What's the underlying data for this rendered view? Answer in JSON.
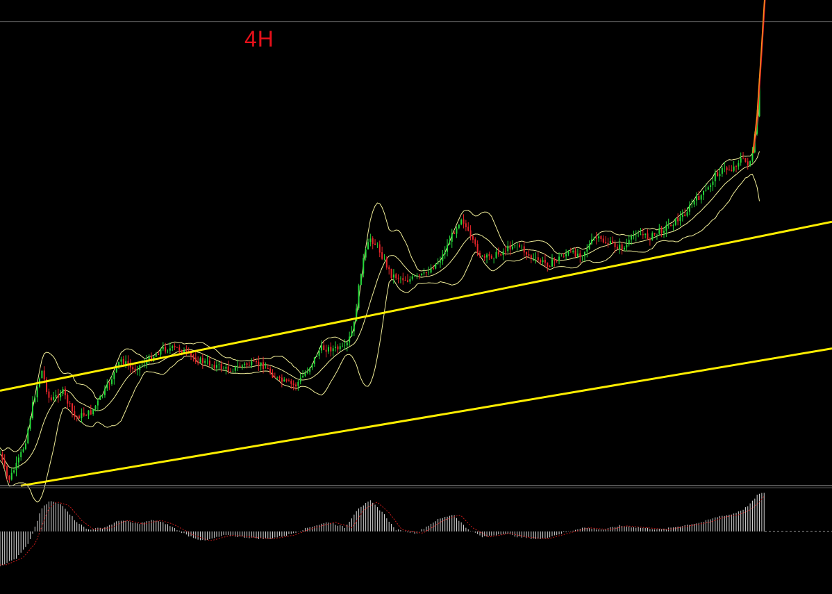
{
  "timeframe_label": "4H",
  "colors": {
    "background": "#000000",
    "channel": "#ffee00",
    "band": "#f2ef9a",
    "up_candle": "#25d83a",
    "down_candle": "#e8252a",
    "histogram": "#d9d9d9",
    "signal": "#c81a1a",
    "separator": "#8a8a8a",
    "label": "#e8101a"
  },
  "chart_data": [
    {
      "type": "candlestick",
      "title": "4H",
      "channel_lines": [
        {
          "name": "upper-channel",
          "from": [
            0,
            0.74
          ],
          "to": [
            1,
            0.42
          ]
        },
        {
          "name": "lower-channel",
          "from": [
            0.025,
            0.92
          ],
          "to": [
            1,
            0.66
          ]
        }
      ],
      "price_path": [
        [
          0.0,
          0.86
        ],
        [
          0.01,
          0.91
        ],
        [
          0.02,
          0.88
        ],
        [
          0.03,
          0.84
        ],
        [
          0.04,
          0.76
        ],
        [
          0.05,
          0.7
        ],
        [
          0.06,
          0.76
        ],
        [
          0.075,
          0.74
        ],
        [
          0.09,
          0.79
        ],
        [
          0.11,
          0.78
        ],
        [
          0.13,
          0.73
        ],
        [
          0.145,
          0.68
        ],
        [
          0.16,
          0.7
        ],
        [
          0.18,
          0.68
        ],
        [
          0.195,
          0.66
        ],
        [
          0.215,
          0.66
        ],
        [
          0.235,
          0.68
        ],
        [
          0.255,
          0.69
        ],
        [
          0.275,
          0.7
        ],
        [
          0.295,
          0.69
        ],
        [
          0.315,
          0.69
        ],
        [
          0.335,
          0.72
        ],
        [
          0.355,
          0.73
        ],
        [
          0.37,
          0.7
        ],
        [
          0.385,
          0.66
        ],
        [
          0.4,
          0.66
        ],
        [
          0.415,
          0.66
        ],
        [
          0.425,
          0.62
        ],
        [
          0.435,
          0.5
        ],
        [
          0.445,
          0.45
        ],
        [
          0.455,
          0.47
        ],
        [
          0.47,
          0.52
        ],
        [
          0.49,
          0.53
        ],
        [
          0.51,
          0.52
        ],
        [
          0.53,
          0.49
        ],
        [
          0.545,
          0.44
        ],
        [
          0.555,
          0.41
        ],
        [
          0.565,
          0.45
        ],
        [
          0.58,
          0.49
        ],
        [
          0.6,
          0.48
        ],
        [
          0.62,
          0.46
        ],
        [
          0.64,
          0.49
        ],
        [
          0.66,
          0.5
        ],
        [
          0.68,
          0.48
        ],
        [
          0.7,
          0.48
        ],
        [
          0.715,
          0.45
        ],
        [
          0.73,
          0.46
        ],
        [
          0.75,
          0.47
        ],
        [
          0.765,
          0.44
        ],
        [
          0.78,
          0.45
        ],
        [
          0.8,
          0.43
        ],
        [
          0.82,
          0.41
        ],
        [
          0.835,
          0.38
        ],
        [
          0.85,
          0.36
        ],
        [
          0.86,
          0.33
        ],
        [
          0.87,
          0.32
        ],
        [
          0.88,
          0.32
        ],
        [
          0.89,
          0.3
        ],
        [
          0.9,
          0.31
        ],
        [
          0.905,
          0.29
        ],
        [
          0.91,
          0.22
        ],
        [
          0.915,
          0.1
        ],
        [
          0.919,
          0.0
        ]
      ],
      "oscillator": {
        "type": "histogram",
        "zero_line": true,
        "path": [
          [
            0.0,
            -0.9
          ],
          [
            0.02,
            -0.7
          ],
          [
            0.035,
            -0.3
          ],
          [
            0.05,
            0.6
          ],
          [
            0.06,
            0.8
          ],
          [
            0.075,
            0.7
          ],
          [
            0.09,
            0.3
          ],
          [
            0.105,
            0.05
          ],
          [
            0.125,
            0.1
          ],
          [
            0.145,
            0.3
          ],
          [
            0.165,
            0.2
          ],
          [
            0.185,
            0.3
          ],
          [
            0.2,
            0.2
          ],
          [
            0.225,
            -0.1
          ],
          [
            0.245,
            -0.25
          ],
          [
            0.27,
            -0.1
          ],
          [
            0.295,
            -0.15
          ],
          [
            0.32,
            -0.2
          ],
          [
            0.345,
            -0.1
          ],
          [
            0.37,
            0.1
          ],
          [
            0.395,
            0.25
          ],
          [
            0.415,
            0.1
          ],
          [
            0.43,
            0.6
          ],
          [
            0.445,
            0.8
          ],
          [
            0.46,
            0.5
          ],
          [
            0.475,
            0.05
          ],
          [
            0.5,
            -0.05
          ],
          [
            0.525,
            0.3
          ],
          [
            0.545,
            0.45
          ],
          [
            0.56,
            0.1
          ],
          [
            0.58,
            -0.15
          ],
          [
            0.605,
            -0.05
          ],
          [
            0.625,
            -0.15
          ],
          [
            0.65,
            -0.2
          ],
          [
            0.675,
            -0.05
          ],
          [
            0.7,
            0.1
          ],
          [
            0.725,
            0.05
          ],
          [
            0.745,
            0.15
          ],
          [
            0.77,
            0.1
          ],
          [
            0.795,
            0.05
          ],
          [
            0.82,
            0.15
          ],
          [
            0.845,
            0.25
          ],
          [
            0.865,
            0.4
          ],
          [
            0.88,
            0.45
          ],
          [
            0.895,
            0.6
          ],
          [
            0.905,
            0.8
          ],
          [
            0.912,
            1.0
          ],
          [
            0.919,
            1.0
          ]
        ]
      }
    }
  ]
}
